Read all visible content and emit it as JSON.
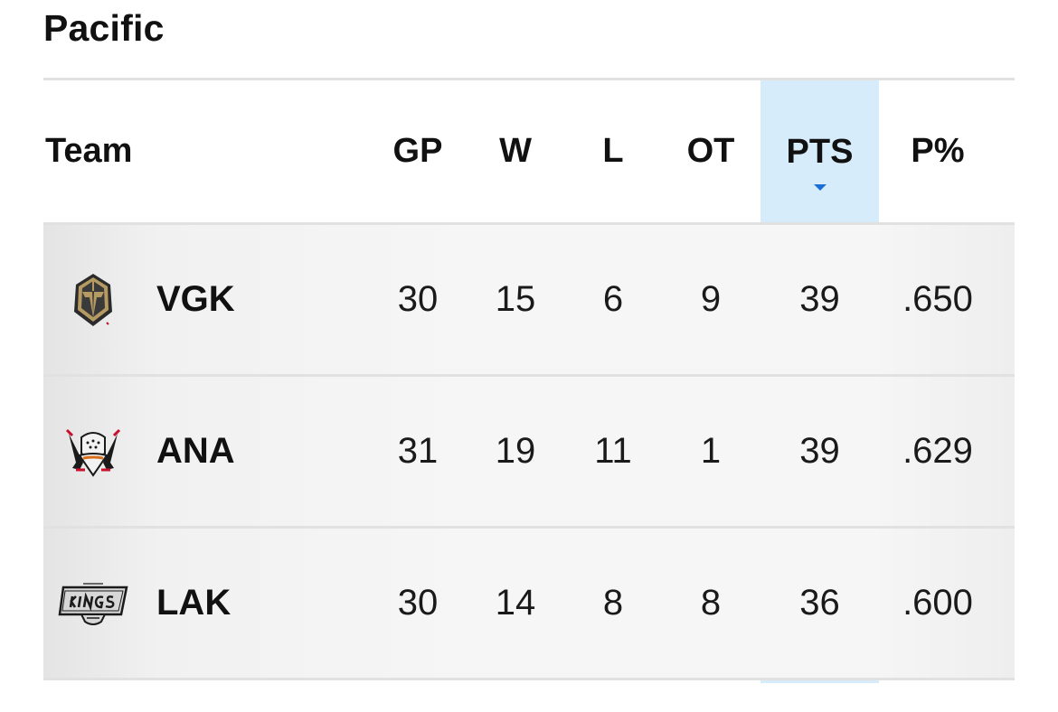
{
  "division": {
    "title": "Pacific"
  },
  "columns": {
    "team": "Team",
    "gp": "GP",
    "w": "W",
    "l": "L",
    "ot": "OT",
    "pts": "PTS",
    "pct": "P%"
  },
  "sort": {
    "column": "PTS",
    "direction": "descending",
    "highlight_color": "#d6ecfb",
    "arrow_color": "#1a6fd6"
  },
  "teams": [
    {
      "abbr": "VGK",
      "logo": "vegas-golden-knights-helmet-logo",
      "gp": "30",
      "w": "15",
      "l": "6",
      "ot": "9",
      "pts": "39",
      "pct": ".650"
    },
    {
      "abbr": "ANA",
      "logo": "anaheim-ducks-mask-logo",
      "gp": "31",
      "w": "19",
      "l": "11",
      "ot": "1",
      "pts": "39",
      "pct": ".629"
    },
    {
      "abbr": "LAK",
      "logo": "los-angeles-kings-shield-logo",
      "gp": "30",
      "w": "14",
      "l": "8",
      "ot": "8",
      "pts": "36",
      "pct": ".600"
    }
  ]
}
